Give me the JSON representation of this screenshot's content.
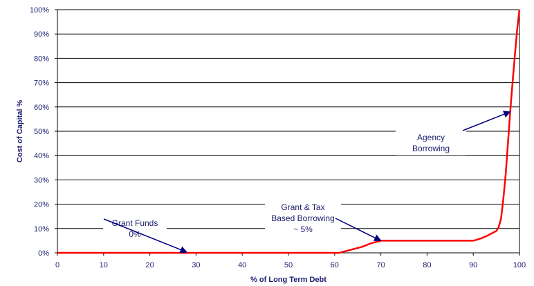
{
  "chart_data": {
    "type": "line",
    "title": "",
    "xlabel": "% of Long Term Debt",
    "ylabel": "Cost of Capital %",
    "xlim": [
      0,
      100
    ],
    "ylim": [
      0,
      100
    ],
    "xticks": [
      0,
      10,
      20,
      30,
      40,
      50,
      60,
      70,
      80,
      90,
      100
    ],
    "xtick_labels": [
      "0",
      "10",
      "20",
      "30",
      "40",
      "50",
      "60",
      "70",
      "80",
      "90",
      "100"
    ],
    "yticks": [
      0,
      10,
      20,
      30,
      40,
      50,
      60,
      70,
      80,
      90,
      100
    ],
    "ytick_labels": [
      "0%",
      "10%",
      "20%",
      "30%",
      "40%",
      "50%",
      "60%",
      "70%",
      "80%",
      "90%",
      "100%"
    ],
    "grid": "horizontal",
    "series": [
      {
        "color": "#ff0000",
        "x": [
          0,
          10,
          20,
          30,
          40,
          50,
          60,
          61,
          62,
          64,
          66,
          68,
          70,
          75,
          80,
          85,
          90,
          91,
          92,
          93,
          94,
          95,
          95.5,
          96,
          96.5,
          97,
          97.5,
          98,
          98.5,
          99,
          99.5,
          100
        ],
        "y": [
          0,
          0,
          0,
          0,
          0,
          0,
          0,
          0,
          0.5,
          1.5,
          2.5,
          4,
          5,
          5,
          5,
          5,
          5,
          5.5,
          6.2,
          7,
          8,
          9,
          10.5,
          14,
          22,
          32,
          45,
          58,
          70,
          81,
          92,
          100
        ]
      }
    ],
    "annotations": [
      {
        "lines": [
          "Grant Funds",
          "0%"
        ],
        "arrow_to": [
          28,
          0
        ]
      },
      {
        "lines": [
          "Grant & Tax",
          "Based Borrowing",
          "~ 5%"
        ],
        "arrow_to": [
          70,
          5
        ]
      },
      {
        "lines": [
          "Agency",
          "Borrowing"
        ],
        "arrow_to": [
          98,
          58
        ]
      }
    ],
    "colors": {
      "line": "#ff0000",
      "text": "#1c1c70",
      "arrow": "#000080",
      "grid": "#000000"
    }
  }
}
